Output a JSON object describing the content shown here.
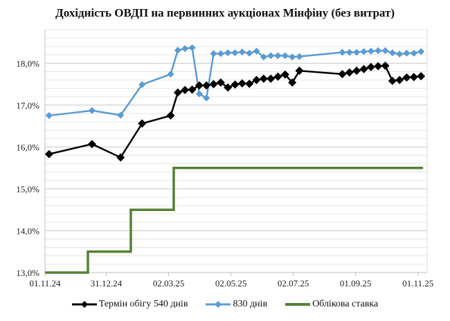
{
  "chart_data": {
    "type": "line",
    "title": "Дохідність ОВДП на первинних аукціонах Мінфіну (без витрат)",
    "xlabel": "",
    "ylabel": "",
    "ylim": [
      13.0,
      18.8
    ],
    "y_ticks": [
      "13,0%",
      "14,0%",
      "15,0%",
      "16,0%",
      "17,0%",
      "18,0%"
    ],
    "y_tick_values": [
      13,
      14,
      15,
      16,
      17,
      18
    ],
    "x_ticks": [
      "01.11.24",
      "31.12.24",
      "02.03.25",
      "02.05.25",
      "02.07.25",
      "01.09.25",
      "01.11.25"
    ],
    "x_tick_dates": [
      "2024-11-01",
      "2024-12-31",
      "2025-03-02",
      "2025-05-02",
      "2025-07-02",
      "2025-09-01",
      "2025-11-01"
    ],
    "x_range": [
      "2024-11-01",
      "2025-11-10"
    ],
    "grid": true,
    "legend_position": "bottom",
    "x": [
      "2024-11-05",
      "2024-12-17",
      "2025-01-14",
      "2025-02-04",
      "2025-03-04",
      "2025-03-11",
      "2025-03-18",
      "2025-03-25",
      "2025-04-01",
      "2025-04-08",
      "2025-04-15",
      "2025-04-22",
      "2025-04-29",
      "2025-05-06",
      "2025-05-13",
      "2025-05-20",
      "2025-05-27",
      "2025-06-03",
      "2025-06-10",
      "2025-06-17",
      "2025-06-24",
      "2025-07-01",
      "2025-07-08",
      "2025-08-19",
      "2025-08-26",
      "2025-09-02",
      "2025-09-09",
      "2025-09-16",
      "2025-09-23",
      "2025-09-30",
      "2025-10-07",
      "2025-10-14",
      "2025-10-21",
      "2025-10-28",
      "2025-11-04"
    ],
    "series": [
      {
        "name": "Термін обігу 540 днів",
        "color": "#000000",
        "marker": "diamond",
        "values": [
          15.83,
          16.07,
          15.75,
          16.56,
          16.75,
          17.3,
          17.36,
          17.37,
          17.47,
          17.47,
          17.5,
          17.54,
          17.42,
          17.49,
          17.52,
          17.51,
          17.6,
          17.63,
          17.63,
          17.68,
          17.73,
          17.54,
          17.82,
          17.74,
          17.78,
          17.82,
          17.86,
          17.91,
          17.93,
          17.94,
          17.58,
          17.6,
          17.66,
          17.67,
          17.69
        ]
      },
      {
        "name": "830 днів",
        "color": "#5b9bd5",
        "marker": "diamond",
        "values": [
          16.75,
          16.87,
          16.76,
          17.49,
          17.74,
          18.31,
          18.35,
          18.37,
          17.27,
          17.17,
          18.23,
          18.23,
          18.25,
          18.25,
          18.27,
          18.24,
          18.29,
          18.15,
          18.18,
          18.18,
          18.18,
          18.15,
          18.16,
          18.26,
          18.26,
          18.26,
          18.28,
          18.29,
          18.3,
          18.3,
          18.25,
          18.22,
          18.24,
          18.24,
          18.28
        ]
      },
      {
        "name": "Облікова ставка",
        "color": "#548235",
        "marker": "none",
        "step": true,
        "points": [
          [
            "2024-11-01",
            13.0
          ],
          [
            "2024-12-13",
            13.5
          ],
          [
            "2025-01-24",
            14.5
          ],
          [
            "2025-03-07",
            15.5
          ],
          [
            "2025-11-06",
            15.5
          ]
        ]
      }
    ]
  }
}
